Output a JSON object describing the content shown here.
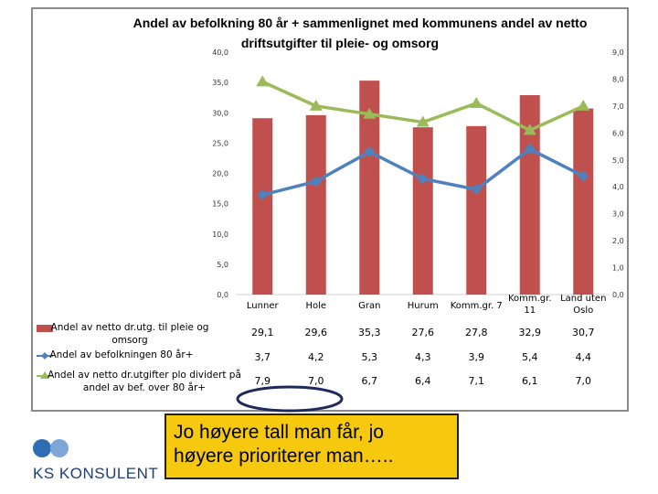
{
  "chart_data": {
    "type": "bar",
    "title_line1": "Andel av befolkning 80 år + sammenlignet med kommunens andel av netto",
    "title_line2": "driftsutgifter til pleie- og omsorg",
    "categories": [
      "Lunner",
      "Hole",
      "Gran",
      "Hurum",
      "Komm.gr. 7",
      [
        "Komm.gr.",
        "11"
      ],
      [
        "Land uten",
        "Oslo"
      ]
    ],
    "y_left": {
      "lim": [
        0,
        40
      ],
      "ticks": [
        "0,0",
        "5,0",
        "10,0",
        "15,0",
        "20,0",
        "25,0",
        "30,0",
        "35,0",
        "40,0"
      ]
    },
    "y_right": {
      "lim": [
        0,
        9
      ],
      "ticks": [
        "0,0",
        "1,0",
        "2,0",
        "3,0",
        "4,0",
        "5,0",
        "6,0",
        "7,0",
        "8,0",
        "9,0"
      ]
    },
    "series": [
      {
        "name": [
          "Andel av netto dr.utg. til pleie og",
          "omsorg"
        ],
        "type": "bar",
        "axis": "left",
        "values": [
          29.1,
          29.6,
          35.3,
          27.6,
          27.8,
          32.9,
          30.7
        ],
        "labels": [
          "29,1",
          "29,6",
          "35,3",
          "27,6",
          "27,8",
          "32,9",
          "30,7"
        ],
        "color": "#c0504d"
      },
      {
        "name": [
          "Andel av befolkningen 80 år+"
        ],
        "type": "line",
        "axis": "right",
        "marker": "diamond",
        "values": [
          3.7,
          4.2,
          5.3,
          4.3,
          3.9,
          5.4,
          4.4
        ],
        "labels": [
          "3,7",
          "4,2",
          "5,3",
          "4,3",
          "3,9",
          "5,4",
          "4,4"
        ],
        "color": "#4f81bd"
      },
      {
        "name": [
          "Andel av netto dr.utgifter plo dividert på",
          "andel av bef. over 80 år+"
        ],
        "type": "line",
        "axis": "right",
        "marker": "triangle",
        "values": [
          7.9,
          7.0,
          6.7,
          6.4,
          7.1,
          6.1,
          7.0
        ],
        "labels": [
          "7,9",
          "7,0",
          "6,7",
          "6,4",
          "7,1",
          "6,1",
          "7,0"
        ],
        "color": "#9bbb59"
      }
    ]
  },
  "callout": {
    "line1": "Jo høyere tall man får, jo",
    "line2": "høyere prioriterer man…..",
    "color": "#f6c90e"
  },
  "logo": {
    "text": "KS KONSULENT",
    "color": "#1e3d7b"
  },
  "highlight_color": "#1f2a5c"
}
